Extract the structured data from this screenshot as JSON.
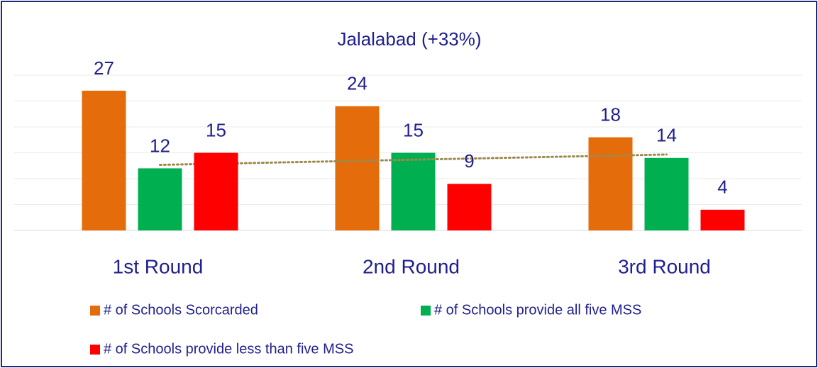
{
  "chart_data": {
    "type": "bar",
    "title": "Jalalabad (+33%)",
    "categories": [
      "1st Round",
      "2nd Round",
      "3rd Round"
    ],
    "series": [
      {
        "name": "# of Schools Scorcarded",
        "color": "#e46c0a",
        "values": [
          27,
          24,
          18
        ]
      },
      {
        "name": "# of Schools provide all five MSS",
        "color": "#00b050",
        "values": [
          12,
          15,
          14
        ],
        "trendline": "linear",
        "trendline_color": "#9c8a4e"
      },
      {
        "name": "# of Schools provide less than five MSS",
        "color": "#ff0000",
        "values": [
          15,
          9,
          4
        ]
      }
    ],
    "ylim": [
      0,
      30
    ],
    "yticks": [
      0,
      5,
      10,
      15,
      20,
      25,
      30
    ],
    "grid": true,
    "legend": "bottom"
  }
}
